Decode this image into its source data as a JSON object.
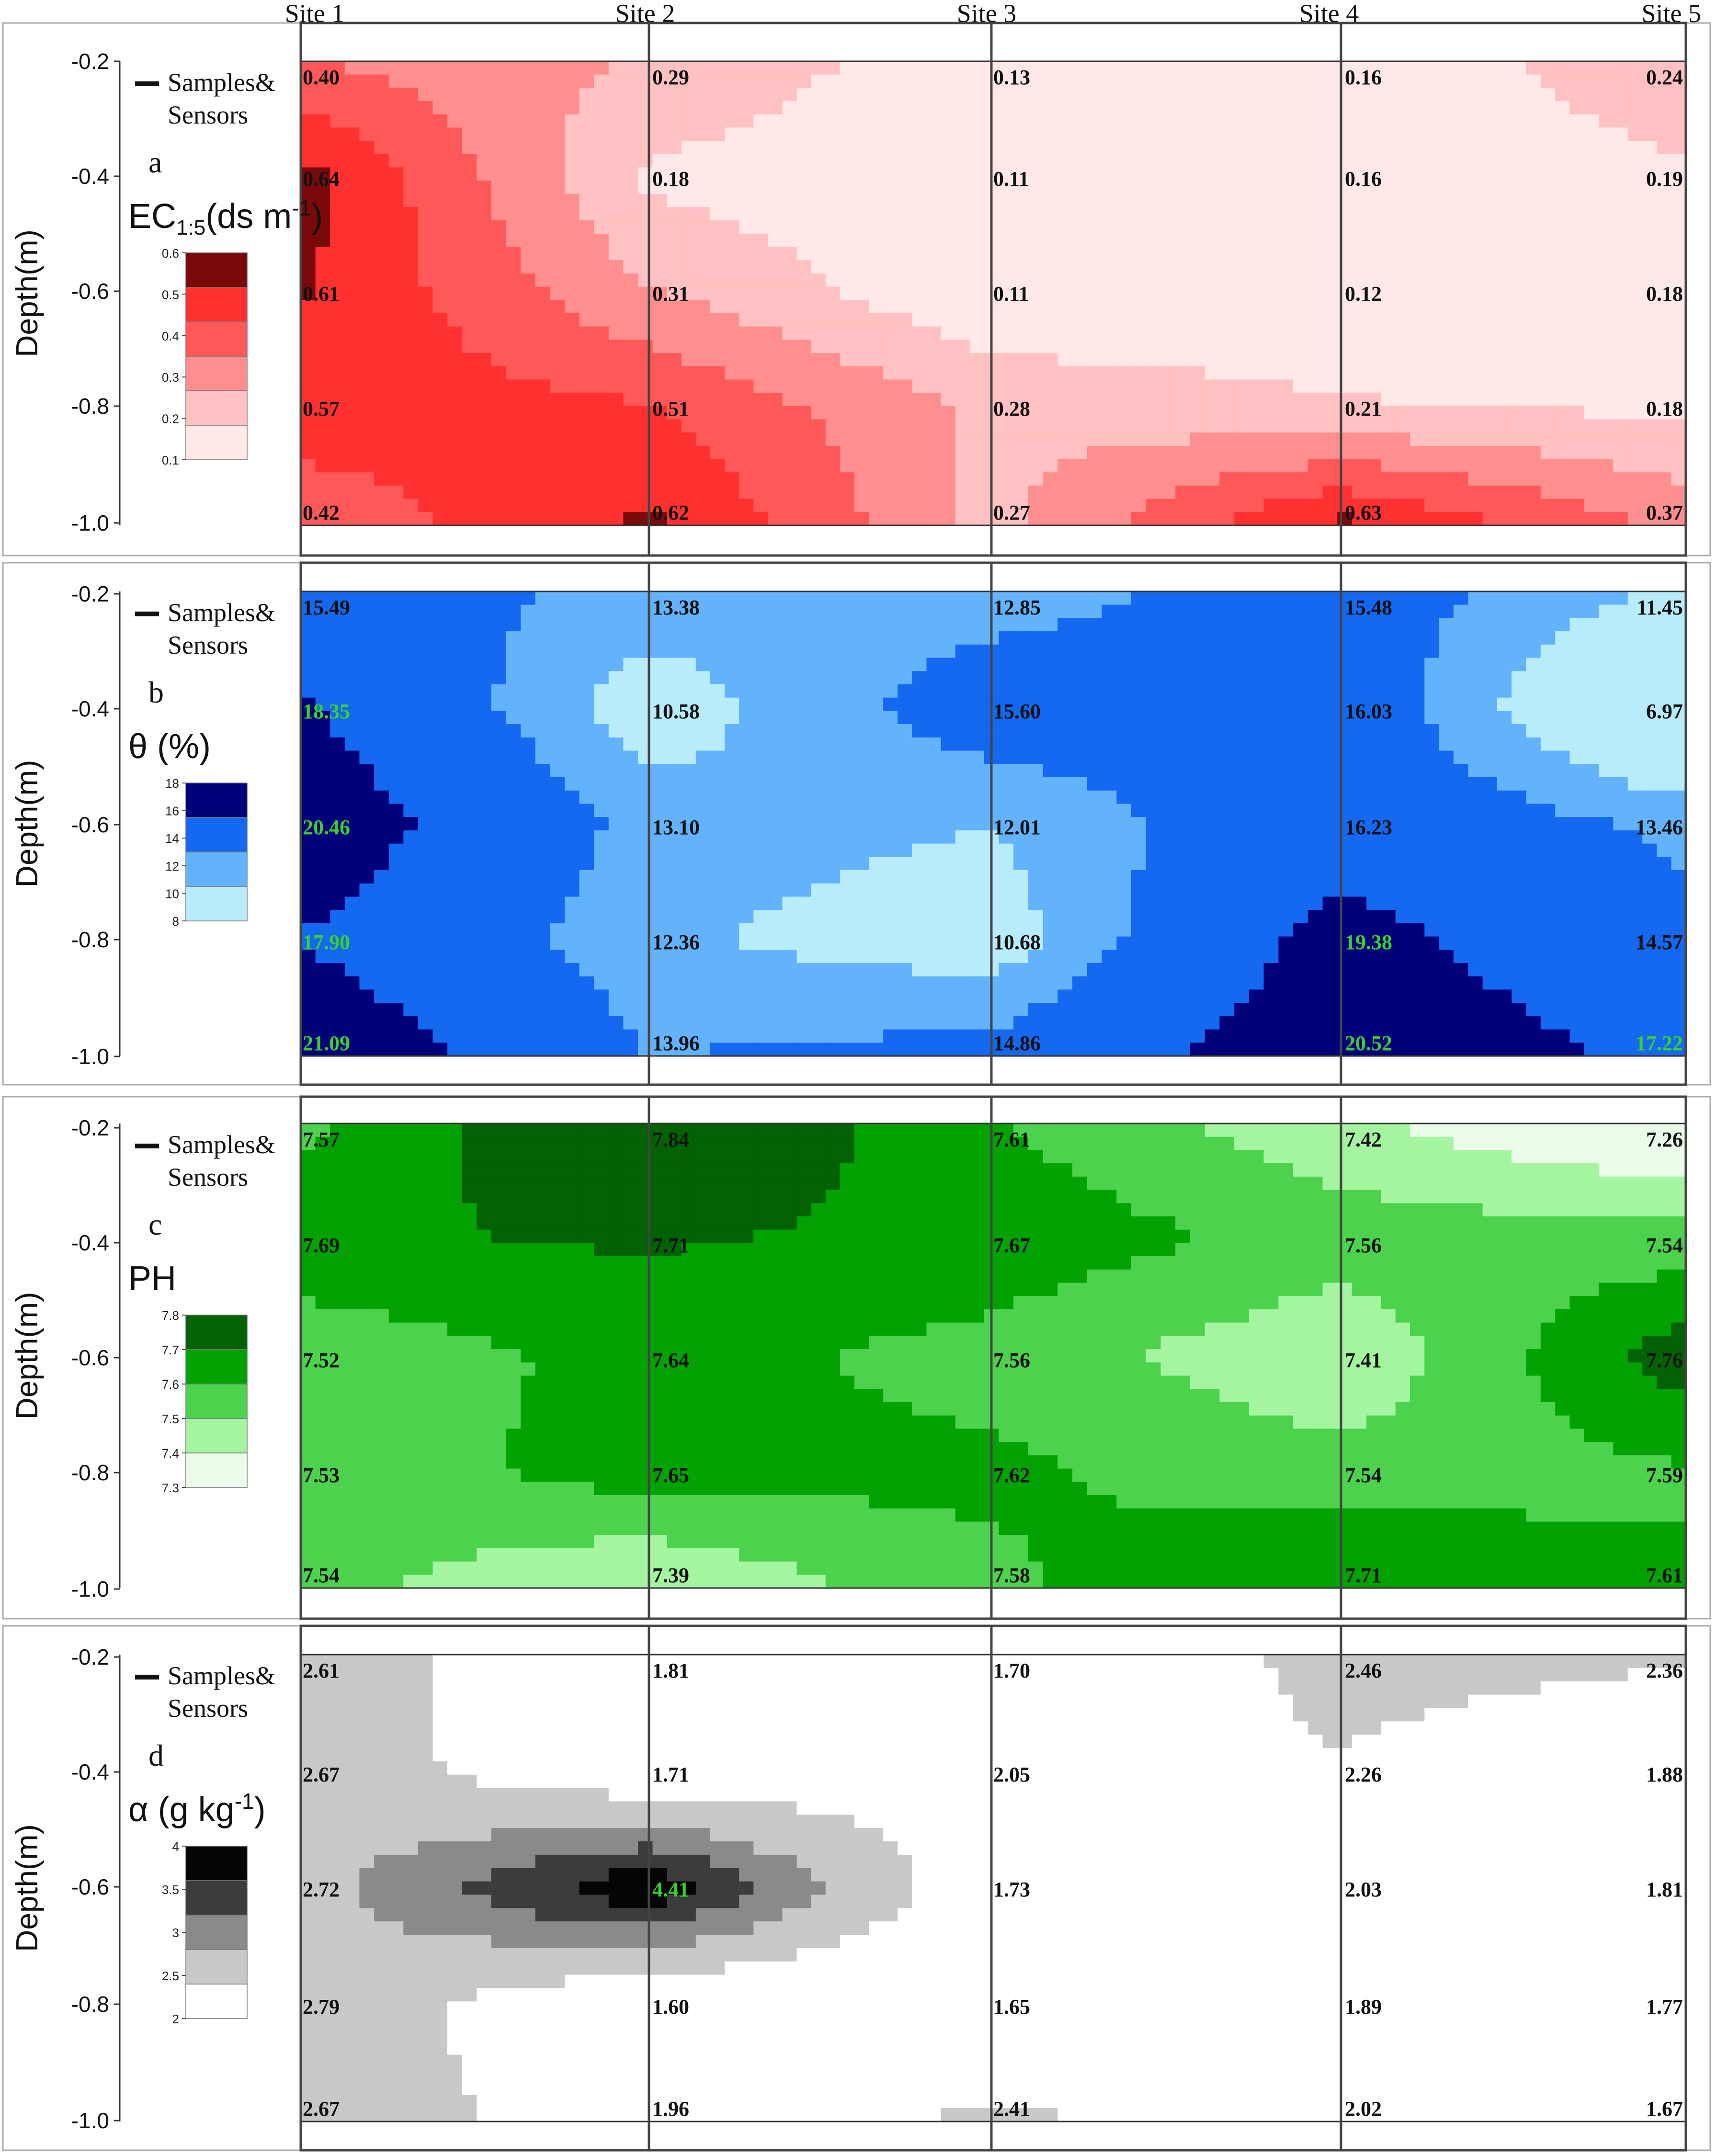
{
  "chart_data": {
    "type": "heatmap",
    "sites": [
      "Site 1",
      "Site 2",
      "Site 3",
      "Site 4",
      "Site 5"
    ],
    "depths": [
      -0.2,
      -0.4,
      -0.6,
      -0.8,
      -1.0
    ],
    "ytick_labels": [
      "-0.2",
      "-0.4",
      "-0.6",
      "-0.8",
      "-1.0"
    ],
    "ylabel": "Depth(m)",
    "legend_marker_label": [
      "Samples&",
      "Sensors"
    ],
    "panels": [
      {
        "letter": "a",
        "title_main": "EC",
        "title_sub": "1:5",
        "title_unit": "(ds m",
        "title_sup": "-1",
        "title_close": ")",
        "levels": [
          "0.6",
          "0.5",
          "0.4",
          "0.3",
          "0.2",
          "0.1"
        ],
        "colors": [
          "#ffe8e8",
          "#ffc1c1",
          "#ff8f8f",
          "#ff5858",
          "#ff3030",
          "#7a0a0a"
        ],
        "thresholds": [
          0.1,
          0.2,
          0.3,
          0.4,
          0.5,
          0.6
        ],
        "values": [
          [
            0.4,
            0.29,
            0.13,
            0.16,
            0.24
          ],
          [
            0.64,
            0.18,
            0.11,
            0.16,
            0.19
          ],
          [
            0.61,
            0.31,
            0.11,
            0.12,
            0.18
          ],
          [
            0.57,
            0.51,
            0.28,
            0.21,
            0.18
          ],
          [
            0.42,
            0.62,
            0.27,
            0.63,
            0.37
          ]
        ],
        "labels": [
          [
            "0.40",
            "0.29",
            "0.13",
            "0.16",
            "0.24"
          ],
          [
            "0.64",
            "0.18",
            "0.11",
            "0.16",
            "0.19"
          ],
          [
            "0.61",
            "0.31",
            "0.11",
            "0.12",
            "0.18"
          ],
          [
            "0.57",
            "0.51",
            "0.28",
            "0.21",
            "0.18"
          ],
          [
            "0.42",
            "0.62",
            "0.27",
            "0.63",
            "0.37"
          ]
        ],
        "highlight_color": null
      },
      {
        "letter": "b",
        "title_main": "θ (%)",
        "levels": [
          "18",
          "16",
          "14",
          "12",
          "10",
          "8"
        ],
        "colors": [
          "#b8ecfb",
          "#62b3fb",
          "#1568f0",
          "#00007a"
        ],
        "thresholds": [
          6,
          12,
          14,
          18
        ],
        "values": [
          [
            15.49,
            13.38,
            12.85,
            15.48,
            11.45
          ],
          [
            18.35,
            10.58,
            15.6,
            16.03,
            6.97
          ],
          [
            20.46,
            13.1,
            12.01,
            16.23,
            13.46
          ],
          [
            17.9,
            12.36,
            10.68,
            19.38,
            14.57
          ],
          [
            21.09,
            13.96,
            14.86,
            20.52,
            17.22
          ]
        ],
        "labels": [
          [
            "15.49",
            "13.38",
            "12.85",
            "15.48",
            "11.45"
          ],
          [
            "18.35",
            "10.58",
            "15.60",
            "16.03",
            "6.97"
          ],
          [
            "20.46",
            "13.10",
            "12.01",
            "16.23",
            "13.46"
          ],
          [
            "17.90",
            "12.36",
            "10.68",
            "19.38",
            "14.57"
          ],
          [
            "21.09",
            "13.96",
            "14.86",
            "20.52",
            "17.22"
          ]
        ],
        "highlight_color": "#39d129"
      },
      {
        "letter": "c",
        "title_main": "PH",
        "levels": [
          "7.8",
          "7.7",
          "7.6",
          "7.5",
          "7.4",
          "7.3"
        ],
        "colors": [
          "#eafbea",
          "#a4f4a0",
          "#4cd24c",
          "#03a203",
          "#036203"
        ],
        "thresholds": [
          7.3,
          7.4,
          7.5,
          7.6,
          7.7
        ],
        "values": [
          [
            7.57,
            7.84,
            7.61,
            7.42,
            7.26
          ],
          [
            7.69,
            7.71,
            7.67,
            7.56,
            7.54
          ],
          [
            7.52,
            7.64,
            7.56,
            7.41,
            7.76
          ],
          [
            7.53,
            7.65,
            7.62,
            7.54,
            7.59
          ],
          [
            7.54,
            7.39,
            7.58,
            7.71,
            7.61
          ]
        ],
        "labels": [
          [
            "7.57",
            "7.84",
            "7.61",
            "7.42",
            "7.26"
          ],
          [
            "7.69",
            "7.71",
            "7.67",
            "7.56",
            "7.54"
          ],
          [
            "7.52",
            "7.64",
            "7.56",
            "7.41",
            "7.76"
          ],
          [
            "7.53",
            "7.65",
            "7.62",
            "7.54",
            "7.59"
          ],
          [
            "7.54",
            "7.39",
            "7.58",
            "7.71",
            "7.61"
          ]
        ],
        "highlight_color": null
      },
      {
        "letter": "d",
        "title_main": "α (g kg",
        "title_sup": "-1",
        "title_close": ")",
        "levels": [
          "4",
          "3.5",
          "3",
          "2.5",
          "2"
        ],
        "colors": [
          "#ffffff",
          "#c8c8c8",
          "#8a8a8a",
          "#3c3c3c",
          "#050505"
        ],
        "thresholds": [
          0,
          2.3,
          2.95,
          3.45,
          3.95
        ],
        "values": [
          [
            2.61,
            1.81,
            1.7,
            2.46,
            2.36
          ],
          [
            2.67,
            1.71,
            2.05,
            2.26,
            1.88
          ],
          [
            2.72,
            4.41,
            1.73,
            2.03,
            1.81
          ],
          [
            2.79,
            1.6,
            1.65,
            1.89,
            1.77
          ],
          [
            2.67,
            1.96,
            2.41,
            2.02,
            1.67
          ]
        ],
        "labels": [
          [
            "2.61",
            "1.81",
            "1.70",
            "2.46",
            "2.36"
          ],
          [
            "2.67",
            "1.71",
            "2.05",
            "2.26",
            "1.88"
          ],
          [
            "2.72",
            "4.41",
            "1.73",
            "2.03",
            "1.81"
          ],
          [
            "2.79",
            "1.60",
            "1.65",
            "1.89",
            "1.77"
          ],
          [
            "2.67",
            "1.96",
            "2.41",
            "2.02",
            "1.67"
          ]
        ],
        "highlight_color": "#39d129"
      }
    ]
  }
}
